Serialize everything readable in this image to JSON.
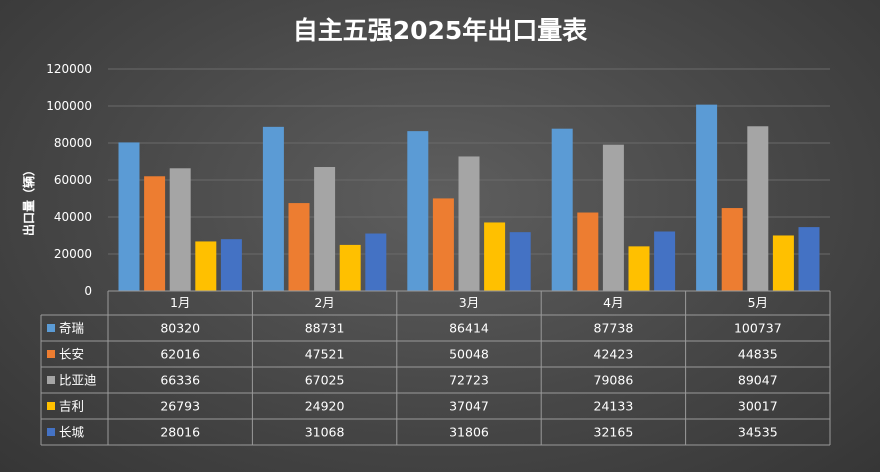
{
  "chart_data": {
    "type": "bar",
    "title": "自主五强2025年出口量表",
    "ylabel": "出口量（辆）",
    "ylim": [
      0,
      120000
    ],
    "yticks": [
      0,
      20000,
      40000,
      60000,
      80000,
      100000,
      120000
    ],
    "grid": true,
    "legend": "data-table-left",
    "categories": [
      "1月",
      "2月",
      "3月",
      "4月",
      "5月"
    ],
    "series": [
      {
        "name": "奇瑞",
        "color": "#5b9bd5",
        "values": [
          80320,
          88731,
          86414,
          87738,
          100737
        ]
      },
      {
        "name": "长安",
        "color": "#ed7d31",
        "values": [
          62016,
          47521,
          50048,
          42423,
          44835
        ]
      },
      {
        "name": "比亚迪",
        "color": "#a5a5a5",
        "values": [
          66336,
          67025,
          72723,
          79086,
          89047
        ]
      },
      {
        "name": "吉利",
        "color": "#ffc000",
        "values": [
          26793,
          24920,
          37047,
          24133,
          30017
        ]
      },
      {
        "name": "长城",
        "color": "#4472c4",
        "values": [
          28016,
          31068,
          31806,
          32165,
          34535
        ]
      }
    ]
  }
}
